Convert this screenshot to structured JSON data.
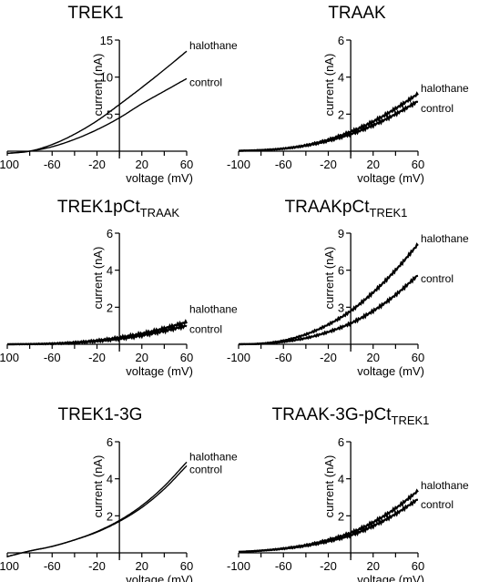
{
  "chart_data": [
    {
      "type": "line",
      "title": "TREK1",
      "title_sub": "",
      "xlabel": "voltage (mV)",
      "ylabel": "current (nA)",
      "xlim": [
        -100,
        60
      ],
      "ylim": [
        0,
        15
      ],
      "xticks": [
        -100,
        -60,
        -20,
        20,
        60
      ],
      "yticks": [
        5,
        10,
        15
      ],
      "series": [
        {
          "name": "halothane",
          "reversal": -80,
          "x": [
            -100,
            -80,
            -60,
            -40,
            -20,
            0,
            20,
            40,
            60
          ],
          "values": [
            -0.3,
            0,
            0.9,
            2.3,
            4.1,
            6.3,
            8.6,
            11.0,
            13.5
          ]
        },
        {
          "name": "control",
          "reversal": -80,
          "x": [
            -100,
            -80,
            -60,
            -40,
            -20,
            0,
            20,
            40,
            60
          ],
          "values": [
            -0.3,
            0,
            0.6,
            1.6,
            2.9,
            4.5,
            6.4,
            8.1,
            9.8
          ]
        }
      ]
    },
    {
      "type": "line",
      "title": "TRAAK",
      "title_sub": "",
      "xlabel": "voltage (mV)",
      "ylabel": "current (nA)",
      "xlim": [
        -100,
        60
      ],
      "ylim": [
        0,
        6
      ],
      "xticks": [
        -100,
        -60,
        -20,
        20,
        60
      ],
      "yticks": [
        2,
        4,
        6
      ],
      "series": [
        {
          "name": "halothane",
          "x": [
            -100,
            -80,
            -60,
            -40,
            -20,
            0,
            20,
            40,
            60
          ],
          "values": [
            0.02,
            0.06,
            0.14,
            0.32,
            0.62,
            1.05,
            1.6,
            2.3,
            3.1
          ]
        },
        {
          "name": "control",
          "x": [
            -100,
            -80,
            -60,
            -40,
            -20,
            0,
            20,
            40,
            60
          ],
          "values": [
            0.02,
            0.06,
            0.14,
            0.3,
            0.56,
            0.92,
            1.4,
            2.0,
            2.7
          ]
        }
      ]
    },
    {
      "type": "line",
      "title": "TREK1pCt",
      "title_sub": "TRAAK",
      "xlabel": "voltage (mV)",
      "ylabel": "current (nA)",
      "xlim": [
        -100,
        60
      ],
      "ylim": [
        0,
        6
      ],
      "xticks": [
        -100,
        -60,
        -20,
        20,
        60
      ],
      "yticks": [
        2,
        4,
        6
      ],
      "series": [
        {
          "name": "halothane",
          "x": [
            -100,
            -80,
            -60,
            -40,
            -20,
            0,
            20,
            40,
            60
          ],
          "values": [
            0.0,
            0.01,
            0.04,
            0.1,
            0.2,
            0.36,
            0.57,
            0.86,
            1.2
          ]
        },
        {
          "name": "control",
          "x": [
            -100,
            -80,
            -60,
            -40,
            -20,
            0,
            20,
            40,
            60
          ],
          "values": [
            0.0,
            0.01,
            0.03,
            0.08,
            0.17,
            0.3,
            0.48,
            0.72,
            1.0
          ]
        }
      ]
    },
    {
      "type": "line",
      "title": "TRAAKpCt",
      "title_sub": "TREK1",
      "xlabel": "voltage (mV)",
      "ylabel": "current (nA)",
      "xlim": [
        -100,
        60
      ],
      "ylim": [
        0,
        9
      ],
      "xticks": [
        -100,
        -60,
        -20,
        20,
        60
      ],
      "yticks": [
        3,
        6,
        9
      ],
      "series": [
        {
          "name": "halothane",
          "x": [
            -100,
            -80,
            -60,
            -40,
            -20,
            0,
            20,
            40,
            60
          ],
          "values": [
            0.0,
            0.06,
            0.3,
            0.8,
            1.6,
            2.7,
            4.2,
            6.0,
            8.1
          ]
        },
        {
          "name": "control",
          "x": [
            -100,
            -80,
            -60,
            -40,
            -20,
            0,
            20,
            40,
            60
          ],
          "values": [
            0.0,
            0.04,
            0.2,
            0.5,
            1.0,
            1.7,
            2.7,
            4.0,
            5.6
          ]
        }
      ]
    },
    {
      "type": "line",
      "title": "TREK1-3G",
      "title_sub": "",
      "xlabel": "voltage (mV)",
      "ylabel": "current (nA)",
      "xlim": [
        -100,
        60
      ],
      "ylim": [
        0,
        6
      ],
      "xticks": [
        -100,
        -60,
        -20,
        20,
        60
      ],
      "yticks": [
        2,
        4,
        6
      ],
      "series": [
        {
          "name": "halothane",
          "x": [
            -100,
            -80,
            -60,
            -40,
            -20,
            0,
            20,
            40,
            60
          ],
          "values": [
            -0.2,
            0.1,
            0.35,
            0.7,
            1.15,
            1.75,
            2.55,
            3.6,
            4.9
          ]
        },
        {
          "name": "control",
          "x": [
            -100,
            -80,
            -60,
            -40,
            -20,
            0,
            20,
            40,
            60
          ],
          "values": [
            -0.2,
            0.1,
            0.35,
            0.7,
            1.12,
            1.7,
            2.45,
            3.45,
            4.7
          ]
        }
      ]
    },
    {
      "type": "line",
      "title": "TRAAK-3G-pCt",
      "title_sub": "TREK1",
      "xlabel": "voltage (mV)",
      "ylabel": "current (nA)",
      "xlim": [
        -100,
        60
      ],
      "ylim": [
        0,
        6
      ],
      "xticks": [
        -100,
        -60,
        -20,
        20,
        60
      ],
      "yticks": [
        2,
        4,
        6
      ],
      "series": [
        {
          "name": "halothane",
          "x": [
            -100,
            -80,
            -60,
            -40,
            -20,
            0,
            20,
            40,
            60
          ],
          "values": [
            0.05,
            0.12,
            0.24,
            0.42,
            0.7,
            1.08,
            1.65,
            2.4,
            3.35
          ]
        },
        {
          "name": "control",
          "x": [
            -100,
            -80,
            -60,
            -40,
            -20,
            0,
            20,
            40,
            60
          ],
          "values": [
            0.05,
            0.12,
            0.22,
            0.38,
            0.62,
            0.95,
            1.45,
            2.1,
            2.9
          ]
        }
      ]
    }
  ]
}
